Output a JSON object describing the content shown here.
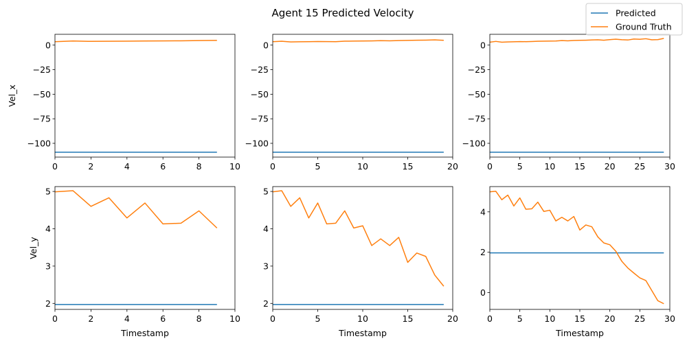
{
  "title": "Agent 15 Predicted Velocity",
  "legend": {
    "placement": "top-right",
    "items": [
      {
        "label": "Predicted",
        "color": "#1f77b4"
      },
      {
        "label": "Ground Truth",
        "color": "#ff7f0e"
      }
    ]
  },
  "chart_data": [
    {
      "type": "line",
      "ylabel": "Vel_x",
      "xlabel": "",
      "xlim": [
        0,
        10
      ],
      "ylim": [
        -114,
        11
      ],
      "xticks": [
        0,
        2,
        4,
        6,
        8,
        10
      ],
      "xtick_labels": [
        "0",
        "2",
        "4",
        "6",
        "8",
        "10"
      ],
      "yticks": [
        0,
        -25,
        -50,
        -75,
        -100
      ],
      "ytick_labels": [
        "0",
        "−25",
        "−50",
        "−75",
        "−100"
      ],
      "series": [
        {
          "name": "Predicted",
          "color": "#1f77b4",
          "x": [
            0,
            1,
            2,
            3,
            4,
            5,
            6,
            7,
            8,
            9
          ],
          "values": [
            -109,
            -109,
            -109,
            -109,
            -109,
            -109,
            -109,
            -109,
            -109,
            -109
          ]
        },
        {
          "name": "Ground Truth",
          "color": "#ff7f0e",
          "x": [
            0,
            1,
            2,
            3,
            4,
            5,
            6,
            7,
            8,
            9
          ],
          "values": [
            3.5,
            4.2,
            3.8,
            3.9,
            4.0,
            4.2,
            4.3,
            4.4,
            4.6,
            4.8
          ]
        }
      ]
    },
    {
      "type": "line",
      "ylabel": "",
      "xlabel": "",
      "xlim": [
        0,
        20
      ],
      "ylim": [
        -114,
        11
      ],
      "xticks": [
        0,
        5,
        10,
        15,
        20
      ],
      "xtick_labels": [
        "0",
        "5",
        "10",
        "15",
        "20"
      ],
      "yticks": [
        0,
        -25,
        -50,
        -75,
        -100
      ],
      "ytick_labels": [
        "0",
        "−25",
        "−50",
        "−75",
        "−100"
      ],
      "series": [
        {
          "name": "Predicted",
          "color": "#1f77b4",
          "x": [
            0,
            1,
            2,
            3,
            4,
            5,
            6,
            7,
            8,
            9,
            10,
            11,
            12,
            13,
            14,
            15,
            16,
            17,
            18,
            19
          ],
          "values": [
            -109,
            -109,
            -109,
            -109,
            -109,
            -109,
            -109,
            -109,
            -109,
            -109,
            -109,
            -109,
            -109,
            -109,
            -109,
            -109,
            -109,
            -109,
            -109,
            -109
          ]
        },
        {
          "name": "Ground Truth",
          "color": "#ff7f0e",
          "x": [
            0,
            1,
            2,
            3,
            4,
            5,
            6,
            7,
            8,
            9,
            10,
            11,
            12,
            13,
            14,
            15,
            16,
            17,
            18,
            19
          ],
          "values": [
            3.5,
            3.9,
            3.2,
            3.4,
            3.5,
            3.7,
            3.6,
            3.5,
            4.0,
            4.1,
            4.2,
            4.3,
            4.5,
            4.4,
            4.6,
            4.8,
            5.0,
            5.1,
            5.3,
            4.9
          ]
        }
      ]
    },
    {
      "type": "line",
      "ylabel": "",
      "xlabel": "",
      "xlim": [
        0,
        30
      ],
      "ylim": [
        -114,
        11
      ],
      "xticks": [
        0,
        5,
        10,
        15,
        20,
        25,
        30
      ],
      "xtick_labels": [
        "0",
        "5",
        "10",
        "15",
        "20",
        "25",
        "30"
      ],
      "yticks": [
        0,
        -25,
        -50,
        -75,
        -100
      ],
      "ytick_labels": [
        "0",
        "−25",
        "−50",
        "−75",
        "−100"
      ],
      "series": [
        {
          "name": "Predicted",
          "color": "#1f77b4",
          "x": [
            0,
            1,
            2,
            3,
            4,
            5,
            6,
            7,
            8,
            9,
            10,
            11,
            12,
            13,
            14,
            15,
            16,
            17,
            18,
            19,
            20,
            21,
            22,
            23,
            24,
            25,
            26,
            27,
            28,
            29
          ],
          "values": [
            -109,
            -109,
            -109,
            -109,
            -109,
            -109,
            -109,
            -109,
            -109,
            -109,
            -109,
            -109,
            -109,
            -109,
            -109,
            -109,
            -109,
            -109,
            -109,
            -109,
            -109,
            -109,
            -109,
            -109,
            -109,
            -109,
            -109,
            -109,
            -109,
            -109
          ]
        },
        {
          "name": "Ground Truth",
          "color": "#ff7f0e",
          "x": [
            0,
            1,
            2,
            3,
            4,
            5,
            6,
            7,
            8,
            9,
            10,
            11,
            12,
            13,
            14,
            15,
            16,
            17,
            18,
            19,
            20,
            21,
            22,
            23,
            24,
            25,
            26,
            27,
            28,
            29
          ],
          "values": [
            3.0,
            3.8,
            3.0,
            3.2,
            3.4,
            3.6,
            3.5,
            3.7,
            3.9,
            4.0,
            4.1,
            4.2,
            4.6,
            4.4,
            4.7,
            4.9,
            5.0,
            5.2,
            5.4,
            5.0,
            5.6,
            6.0,
            5.5,
            5.2,
            6.2,
            5.9,
            6.5,
            5.4,
            5.6,
            6.8
          ]
        }
      ]
    },
    {
      "type": "line",
      "ylabel": "Vel_y",
      "xlabel": "Timestamp",
      "xlim": [
        0,
        10
      ],
      "ylim": [
        1.84,
        5.13
      ],
      "xticks": [
        0,
        2,
        4,
        6,
        8,
        10
      ],
      "xtick_labels": [
        "0",
        "2",
        "4",
        "6",
        "8",
        "10"
      ],
      "yticks": [
        2,
        3,
        4,
        5
      ],
      "ytick_labels": [
        "2",
        "3",
        "4",
        "5"
      ],
      "series": [
        {
          "name": "Predicted",
          "color": "#1f77b4",
          "x": [
            0,
            1,
            2,
            3,
            4,
            5,
            6,
            7,
            8,
            9
          ],
          "values": [
            1.97,
            1.97,
            1.97,
            1.97,
            1.97,
            1.97,
            1.97,
            1.97,
            1.97,
            1.97
          ]
        },
        {
          "name": "Ground Truth",
          "color": "#ff7f0e",
          "x": [
            0,
            1,
            2,
            3,
            4,
            5,
            6,
            7,
            8,
            9
          ],
          "values": [
            4.99,
            5.02,
            4.6,
            4.83,
            4.29,
            4.69,
            4.13,
            4.15,
            4.48,
            4.02
          ]
        }
      ]
    },
    {
      "type": "line",
      "ylabel": "",
      "xlabel": "Timestamp",
      "xlim": [
        0,
        20
      ],
      "ylim": [
        1.84,
        5.13
      ],
      "xticks": [
        0,
        5,
        10,
        15,
        20
      ],
      "xtick_labels": [
        "0",
        "5",
        "10",
        "15",
        "20"
      ],
      "yticks": [
        2,
        3,
        4,
        5
      ],
      "ytick_labels": [
        "2",
        "3",
        "4",
        "5"
      ],
      "series": [
        {
          "name": "Predicted",
          "color": "#1f77b4",
          "x": [
            0,
            1,
            2,
            3,
            4,
            5,
            6,
            7,
            8,
            9,
            10,
            11,
            12,
            13,
            14,
            15,
            16,
            17,
            18,
            19
          ],
          "values": [
            1.97,
            1.97,
            1.97,
            1.97,
            1.97,
            1.97,
            1.97,
            1.97,
            1.97,
            1.97,
            1.97,
            1.97,
            1.97,
            1.97,
            1.97,
            1.97,
            1.97,
            1.97,
            1.97,
            1.97
          ]
        },
        {
          "name": "Ground Truth",
          "color": "#ff7f0e",
          "x": [
            0,
            1,
            2,
            3,
            4,
            5,
            6,
            7,
            8,
            9,
            10,
            11,
            12,
            13,
            14,
            15,
            16,
            17,
            18,
            19
          ],
          "values": [
            4.99,
            5.02,
            4.6,
            4.83,
            4.29,
            4.69,
            4.13,
            4.15,
            4.48,
            4.02,
            4.08,
            3.55,
            3.73,
            3.55,
            3.77,
            3.1,
            3.35,
            3.26,
            2.76,
            2.46
          ]
        }
      ]
    },
    {
      "type": "line",
      "ylabel": "",
      "xlabel": "Timestamp",
      "xlim": [
        0,
        30
      ],
      "ylim": [
        -0.83,
        5.25
      ],
      "xticks": [
        0,
        5,
        10,
        15,
        20,
        25,
        30
      ],
      "xtick_labels": [
        "0",
        "5",
        "10",
        "15",
        "20",
        "25",
        "30"
      ],
      "yticks": [
        0,
        2,
        4
      ],
      "ytick_labels": [
        "0",
        "2",
        "4"
      ],
      "series": [
        {
          "name": "Predicted",
          "color": "#1f77b4",
          "x": [
            0,
            1,
            2,
            3,
            4,
            5,
            6,
            7,
            8,
            9,
            10,
            11,
            12,
            13,
            14,
            15,
            16,
            17,
            18,
            19,
            20,
            21,
            22,
            23,
            24,
            25,
            26,
            27,
            28,
            29
          ],
          "values": [
            1.97,
            1.97,
            1.97,
            1.97,
            1.97,
            1.97,
            1.97,
            1.97,
            1.97,
            1.97,
            1.97,
            1.97,
            1.97,
            1.97,
            1.97,
            1.97,
            1.97,
            1.97,
            1.97,
            1.97,
            1.97,
            1.97,
            1.97,
            1.97,
            1.97,
            1.97,
            1.97,
            1.97,
            1.97,
            1.97
          ]
        },
        {
          "name": "Ground Truth",
          "color": "#ff7f0e",
          "x": [
            0,
            1,
            2,
            3,
            4,
            5,
            6,
            7,
            8,
            9,
            10,
            11,
            12,
            13,
            14,
            15,
            16,
            17,
            18,
            19,
            20,
            21,
            22,
            23,
            24,
            25,
            26,
            27,
            28,
            29
          ],
          "values": [
            4.99,
            5.02,
            4.6,
            4.83,
            4.29,
            4.69,
            4.13,
            4.15,
            4.48,
            4.02,
            4.08,
            3.55,
            3.73,
            3.55,
            3.77,
            3.1,
            3.35,
            3.26,
            2.76,
            2.46,
            2.37,
            2.05,
            1.55,
            1.22,
            0.97,
            0.73,
            0.6,
            0.1,
            -0.4,
            -0.55
          ]
        }
      ]
    }
  ]
}
